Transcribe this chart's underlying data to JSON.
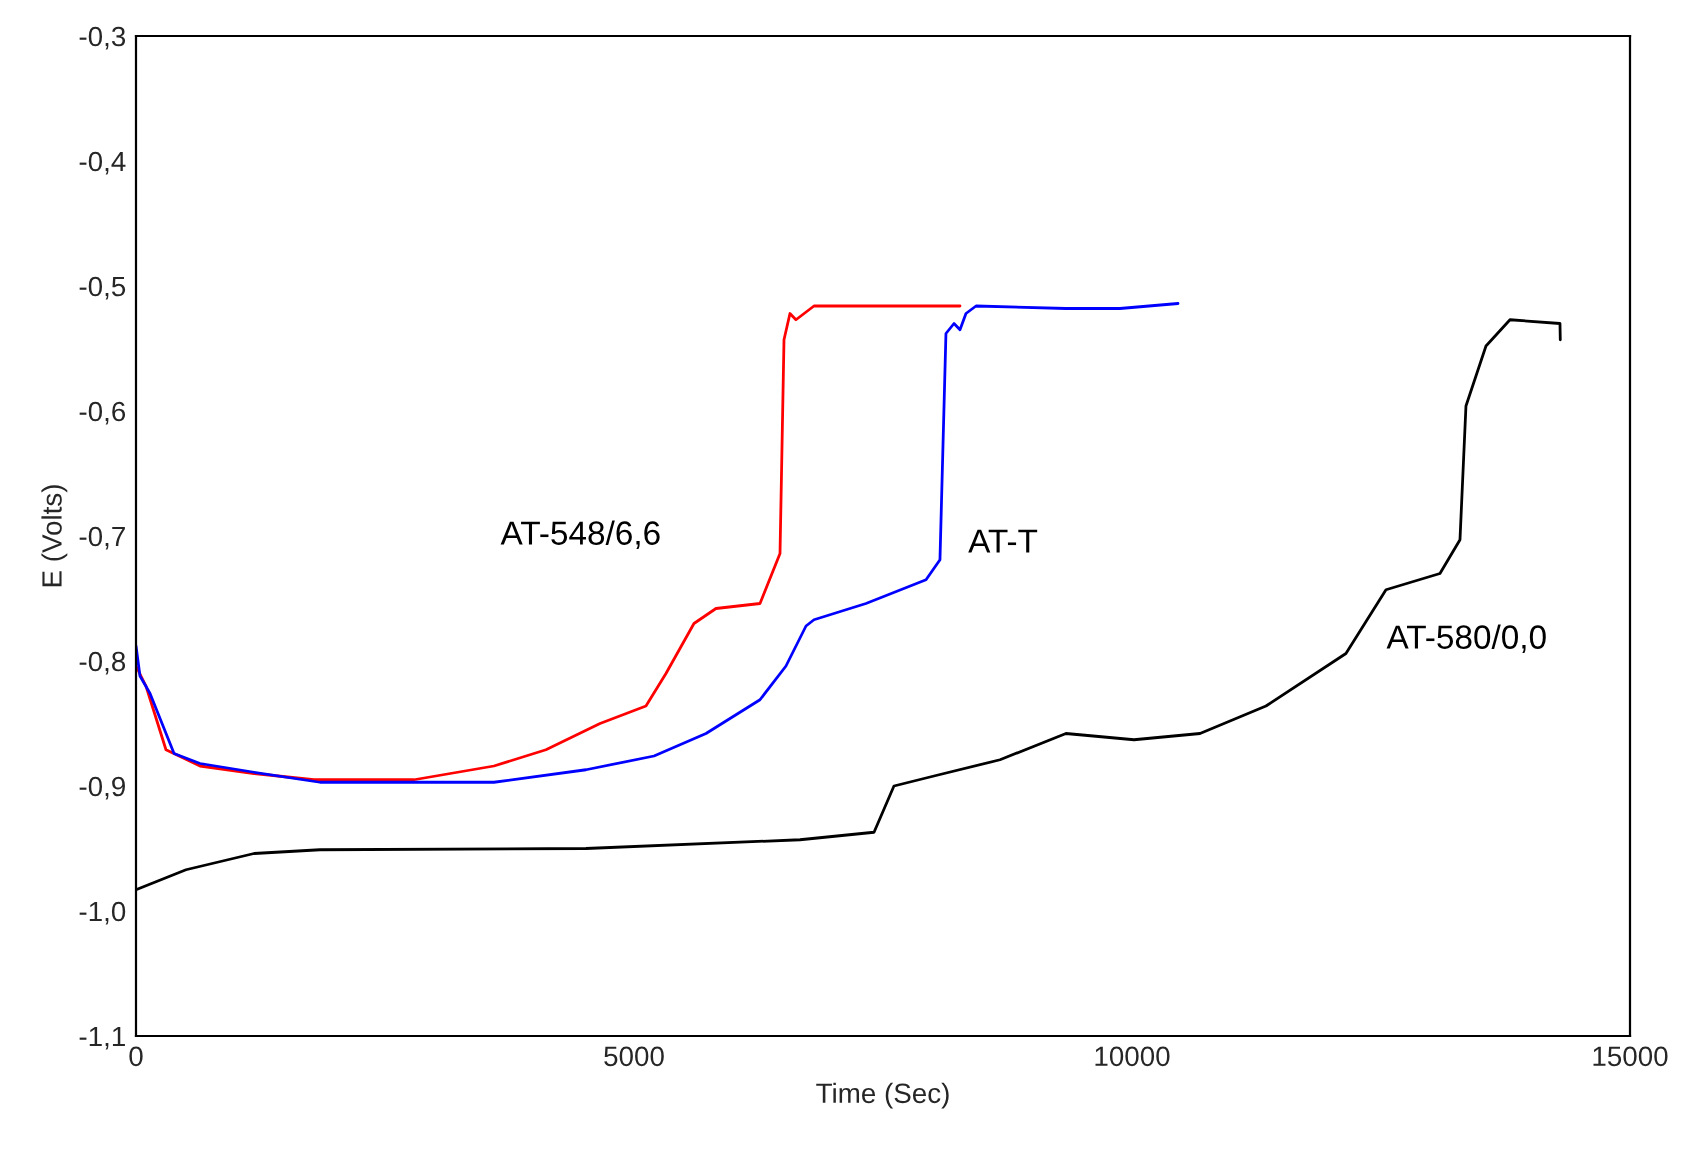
{
  "chart_data": {
    "type": "line",
    "xlabel": "Time (Sec)",
    "ylabel": "E (Volts)",
    "xlim": [
      0,
      15000
    ],
    "ylim": [
      -1.1,
      -0.3
    ],
    "xticks": [
      0,
      5000,
      10000,
      15000
    ],
    "yticks": [
      {
        "value": -1.1,
        "label": "-1,1"
      },
      {
        "value": -1.0,
        "label": "-1,0"
      },
      {
        "value": -0.9,
        "label": "-0,9"
      },
      {
        "value": -0.8,
        "label": "-0,8"
      },
      {
        "value": -0.7,
        "label": "-0,7"
      },
      {
        "value": -0.6,
        "label": "-0,6"
      },
      {
        "value": -0.5,
        "label": "-0,5"
      },
      {
        "value": -0.4,
        "label": "-0,4"
      },
      {
        "value": -0.3,
        "label": "-0,3"
      }
    ],
    "grid": false,
    "legend": false,
    "marker": "none",
    "line_style": "solid",
    "series": [
      {
        "name": "AT-548/6,6",
        "color": "#ff0000",
        "x": [
          0,
          100,
          301,
          643,
          1185,
          1787,
          2791,
          3594,
          4116,
          4659,
          5120,
          5321,
          5602,
          5823,
          6265,
          6466,
          6506,
          6566,
          6626,
          6807,
          8273
        ],
        "values": [
          -0.804,
          -0.82,
          -0.871,
          -0.884,
          -0.89,
          -0.895,
          -0.895,
          -0.884,
          -0.871,
          -0.85,
          -0.836,
          -0.81,
          -0.77,
          -0.758,
          -0.754,
          -0.714,
          -0.543,
          -0.522,
          -0.527,
          -0.516,
          -0.516
        ]
      },
      {
        "name": "AT-T",
        "color": "#0000ff",
        "x": [
          0,
          40,
          141,
          382,
          643,
          1185,
          1847,
          3594,
          4518,
          5201,
          5723,
          6265,
          6526,
          6727,
          6807,
          7329,
          7932,
          8072,
          8132,
          8213,
          8273,
          8333,
          8434,
          9337,
          9879,
          10462
        ],
        "values": [
          -0.788,
          -0.812,
          -0.826,
          -0.874,
          -0.882,
          -0.889,
          -0.897,
          -0.897,
          -0.887,
          -0.876,
          -0.858,
          -0.831,
          -0.804,
          -0.772,
          -0.767,
          -0.754,
          -0.735,
          -0.719,
          -0.538,
          -0.53,
          -0.535,
          -0.522,
          -0.516,
          -0.518,
          -0.518,
          -0.514
        ]
      },
      {
        "name": "AT-580/0,0",
        "color": "#000000",
        "x": [
          0,
          502,
          1185,
          1847,
          4518,
          6667,
          7410,
          7610,
          8012,
          8675,
          9337,
          10020,
          10683,
          11345,
          12148,
          12550,
          13092,
          13293,
          13353,
          13554,
          13795,
          14297,
          14300
        ],
        "values": [
          -0.983,
          -0.967,
          -0.954,
          -0.951,
          -0.95,
          -0.943,
          -0.937,
          -0.9,
          -0.892,
          -0.879,
          -0.858,
          -0.863,
          -0.858,
          -0.836,
          -0.794,
          -0.743,
          -0.73,
          -0.703,
          -0.596,
          -0.548,
          -0.527,
          -0.53,
          -0.543
        ]
      }
    ]
  }
}
